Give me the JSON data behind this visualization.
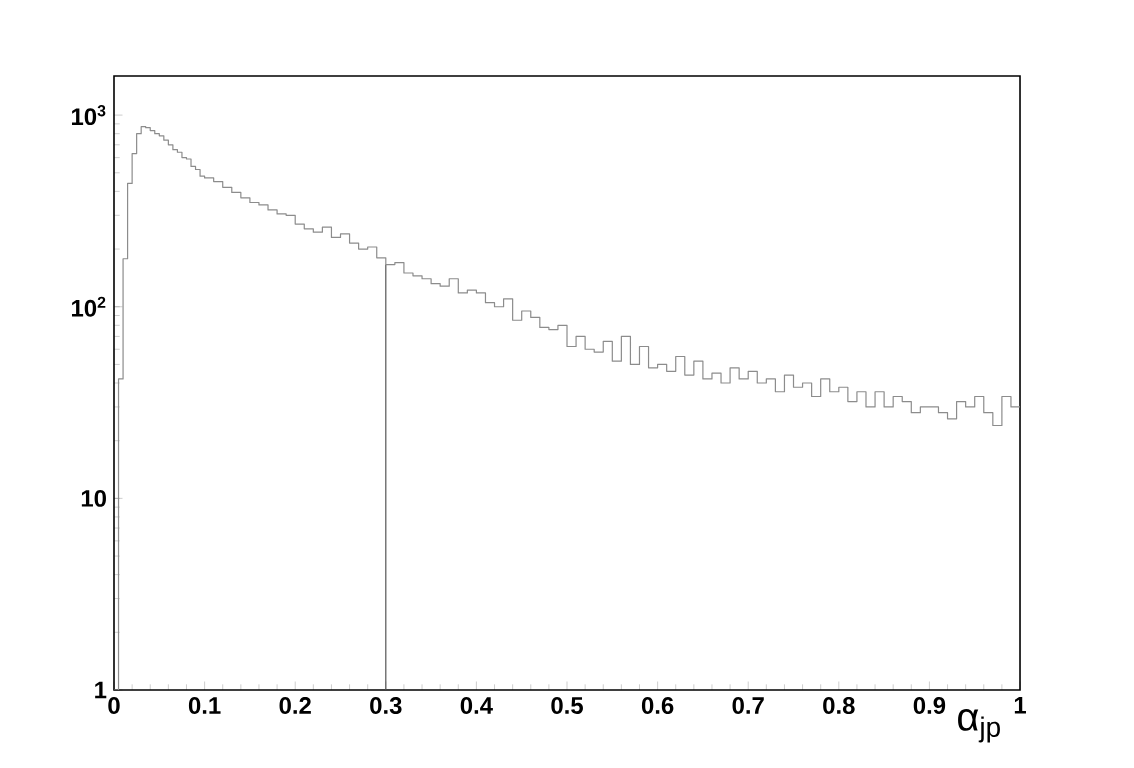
{
  "chart_data": {
    "type": "histogram",
    "xlabel": "α$_{jp}$",
    "bins": [
      0,
      0.005,
      0.01,
      0.015,
      0.02,
      0.025,
      0.03,
      0.035,
      0.04,
      0.045,
      0.05,
      0.055,
      0.06,
      0.065,
      0.07,
      0.075,
      0.08,
      0.085,
      0.09,
      0.095,
      0.1,
      0.11,
      0.12,
      0.13,
      0.14,
      0.15,
      0.16,
      0.17,
      0.18,
      0.19,
      0.2,
      0.21,
      0.22,
      0.23,
      0.24,
      0.25,
      0.26,
      0.27,
      0.28,
      0.29,
      0.3,
      0.31,
      0.32,
      0.33,
      0.34,
      0.35,
      0.36,
      0.37,
      0.38,
      0.39,
      0.4,
      0.41,
      0.42,
      0.43,
      0.44,
      0.45,
      0.46,
      0.47,
      0.48,
      0.49,
      0.5,
      0.51,
      0.52,
      0.53,
      0.54,
      0.55,
      0.56,
      0.57,
      0.58,
      0.59,
      0.6,
      0.61,
      0.62,
      0.63,
      0.64,
      0.65,
      0.66,
      0.67,
      0.68,
      0.69,
      0.7,
      0.71,
      0.72,
      0.73,
      0.74,
      0.75,
      0.76,
      0.77,
      0.78,
      0.79,
      0.8,
      0.81,
      0.82,
      0.83,
      0.84,
      0.85,
      0.86,
      0.87,
      0.88,
      0.89,
      0.9,
      0.91,
      0.92,
      0.93,
      0.94,
      0.95,
      0.96,
      0.97,
      0.98,
      0.99,
      1
    ],
    "values": [
      1,
      42,
      178,
      440,
      630,
      800,
      870,
      860,
      830,
      800,
      780,
      740,
      700,
      660,
      640,
      600,
      590,
      540,
      520,
      480,
      470,
      450,
      420,
      395,
      370,
      350,
      340,
      320,
      305,
      300,
      270,
      255,
      245,
      260,
      230,
      240,
      215,
      200,
      205,
      180,
      166,
      170,
      150,
      145,
      140,
      132,
      128,
      140,
      118,
      122,
      118,
      105,
      100,
      110,
      85,
      95,
      88,
      78,
      76,
      80,
      62,
      70,
      60,
      58,
      66,
      52,
      70,
      50,
      62,
      48,
      50,
      46,
      55,
      44,
      52,
      42,
      45,
      40,
      48,
      42,
      46,
      40,
      42,
      36,
      44,
      38,
      40,
      34,
      42,
      36,
      38,
      32,
      36,
      30,
      36,
      30,
      34,
      32,
      28,
      30,
      30,
      28,
      26,
      32,
      30,
      34,
      28,
      24,
      34,
      30
    ],
    "color": "#8c8c8c",
    "log": "y",
    "xlim": [
      0,
      1
    ],
    "ylim": [
      1,
      1600
    ],
    "xticks": [
      0,
      0.1,
      0.2,
      0.3,
      0.4,
      0.5,
      0.6,
      0.7,
      0.8,
      0.9,
      1
    ],
    "yticks": [
      1,
      10,
      {
        "value": 100,
        "label": "10$^{2}$"
      },
      {
        "value": 1000,
        "label": "10$^{3}$"
      }
    ],
    "ref_lines": [
      {
        "axis": "x",
        "value": 0.3,
        "color": "#555555"
      }
    ]
  }
}
